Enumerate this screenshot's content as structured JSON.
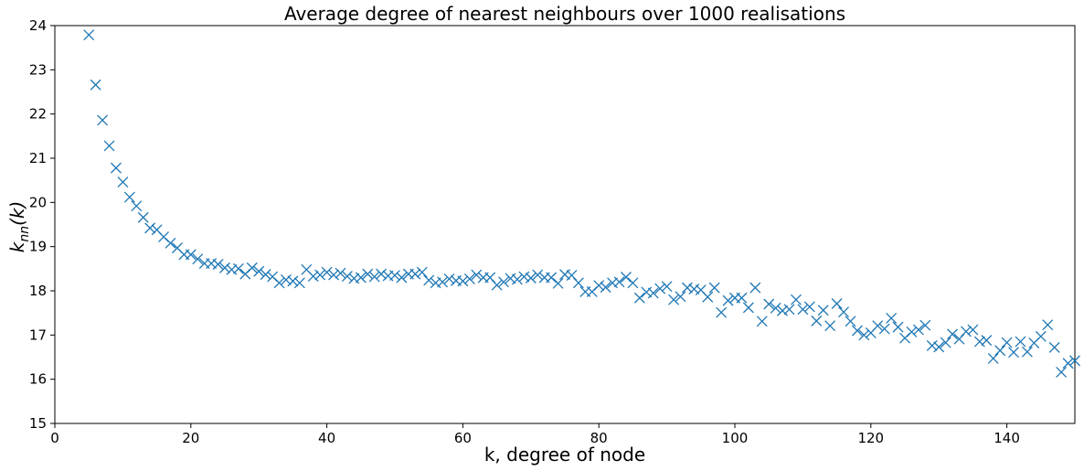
{
  "chart_data": {
    "type": "scatter",
    "title": "Average degree of nearest neighbours over 1000 realisations",
    "xlabel": "k, degree of node",
    "ylabel_base": "k",
    "ylabel_sub": "nn",
    "ylabel_tail": "(k)",
    "xlim": [
      0,
      150
    ],
    "ylim": [
      15,
      24
    ],
    "xticks": [
      0,
      20,
      40,
      60,
      80,
      100,
      120,
      140
    ],
    "yticks": [
      15,
      16,
      17,
      18,
      19,
      20,
      21,
      22,
      23,
      24
    ],
    "marker": "x",
    "marker_color": "#1f77b4",
    "grid": false,
    "series": [
      {
        "x": [
          5,
          6,
          7,
          8,
          9,
          10,
          11,
          12,
          13,
          14,
          15,
          16,
          17,
          18,
          19,
          20,
          21,
          22,
          23,
          24,
          25,
          26,
          27,
          28,
          29,
          30,
          31,
          32,
          33,
          34,
          35,
          36,
          37,
          38,
          39,
          40,
          41,
          42,
          43,
          44,
          45,
          46,
          47,
          48,
          49,
          50,
          51,
          52,
          53,
          54,
          55,
          56,
          57,
          58,
          59,
          60,
          61,
          62,
          63,
          64,
          65,
          66,
          67,
          68,
          69,
          70,
          71,
          72,
          73,
          74,
          75,
          76,
          77,
          78,
          79,
          80,
          81,
          82,
          83,
          84,
          85,
          86,
          87,
          88,
          89,
          90,
          91,
          92,
          93,
          94,
          95,
          96,
          97,
          98,
          99,
          100,
          101,
          102,
          103,
          104,
          105,
          106,
          107,
          108,
          109,
          110,
          111,
          112,
          113,
          114,
          115,
          116,
          117,
          118,
          119,
          120,
          121,
          122,
          123,
          124,
          125,
          126,
          127,
          128,
          129,
          130,
          131,
          132,
          133,
          134,
          135,
          136,
          137,
          138,
          139,
          140,
          141,
          142,
          143,
          144,
          145,
          146,
          147,
          148,
          149,
          150
        ],
        "y": [
          23.79,
          22.66,
          21.86,
          21.28,
          20.78,
          20.46,
          20.12,
          19.92,
          19.66,
          19.42,
          19.38,
          19.22,
          19.08,
          18.97,
          18.82,
          18.82,
          18.72,
          18.62,
          18.62,
          18.6,
          18.52,
          18.48,
          18.5,
          18.38,
          18.52,
          18.44,
          18.37,
          18.32,
          18.18,
          18.25,
          18.22,
          18.18,
          18.48,
          18.33,
          18.36,
          18.42,
          18.36,
          18.4,
          18.33,
          18.28,
          18.3,
          18.38,
          18.32,
          18.38,
          18.34,
          18.35,
          18.3,
          18.38,
          18.38,
          18.42,
          18.24,
          18.18,
          18.2,
          18.27,
          18.23,
          18.22,
          18.27,
          18.36,
          18.3,
          18.3,
          18.13,
          18.2,
          18.28,
          18.26,
          18.32,
          18.29,
          18.36,
          18.3,
          18.3,
          18.17,
          18.37,
          18.35,
          18.18,
          17.98,
          17.98,
          18.12,
          18.08,
          18.18,
          18.2,
          18.31,
          18.18,
          17.84,
          17.97,
          17.95,
          18.05,
          18.1,
          17.8,
          17.87,
          18.07,
          18.04,
          18.02,
          17.86,
          18.07,
          17.51,
          17.78,
          17.84,
          17.84,
          17.62,
          18.07,
          17.31,
          17.7,
          17.61,
          17.55,
          17.58,
          17.8,
          17.58,
          17.64,
          17.32,
          17.56,
          17.21,
          17.71,
          17.52,
          17.31,
          17.1,
          17.0,
          17.05,
          17.21,
          17.14,
          17.38,
          17.18,
          16.93,
          17.07,
          17.12,
          17.22,
          16.76,
          16.73,
          16.83,
          17.02,
          16.91,
          17.08,
          17.12,
          16.85,
          16.88,
          16.47,
          16.65,
          16.83,
          16.61,
          16.85,
          16.62,
          16.82,
          16.97,
          17.23,
          16.72,
          16.16,
          16.36,
          16.42
        ]
      }
    ]
  }
}
